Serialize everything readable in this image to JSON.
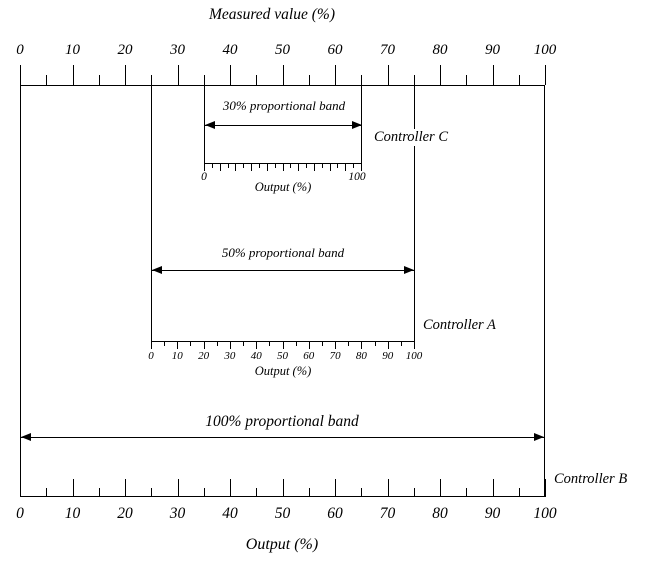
{
  "title": "Measured value (%)",
  "measured_scale": {
    "tick_labels": [
      "0",
      "10",
      "20",
      "30",
      "40",
      "50",
      "60",
      "70",
      "80",
      "90",
      "100"
    ]
  },
  "controller_c": {
    "band_label": "30% proportional band",
    "name": "Controller C",
    "scale_min": "0",
    "scale_max": "100",
    "output_label": "Output (%)"
  },
  "controller_a": {
    "band_label": "50% proportional band",
    "name": "Controller A",
    "tick_labels": [
      "0",
      "10",
      "20",
      "30",
      "40",
      "50",
      "60",
      "70",
      "80",
      "90",
      "100"
    ],
    "output_label": "Output (%)"
  },
  "controller_b": {
    "band_label": "100% proportional band",
    "name": "Controller B",
    "tick_labels": [
      "0",
      "10",
      "20",
      "30",
      "40",
      "50",
      "60",
      "70",
      "80",
      "90",
      "100"
    ],
    "output_label": "Output (%)"
  }
}
